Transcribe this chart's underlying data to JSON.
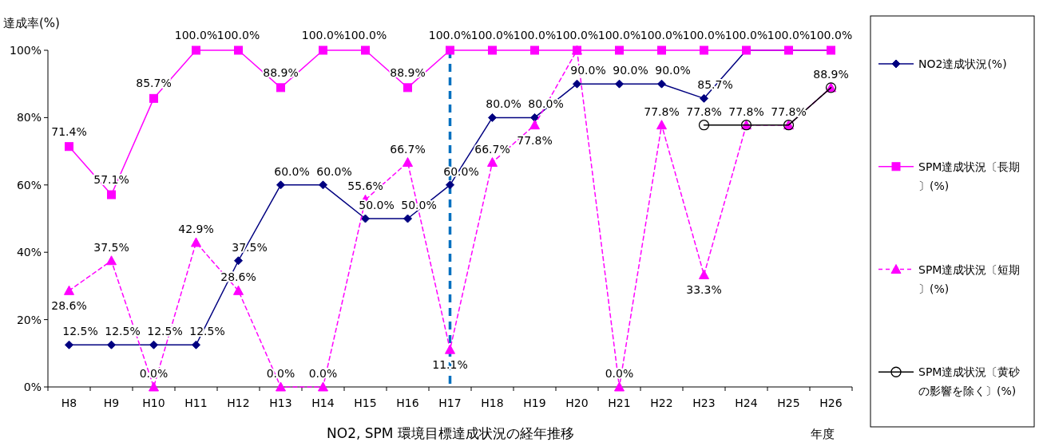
{
  "chart_data": {
    "type": "line",
    "title": "NO2, SPM 環境目標達成状況の経年推移",
    "xlabel": "年度",
    "ylabel": "達成率(%)",
    "categories": [
      "H8",
      "H9",
      "H10",
      "H11",
      "H12",
      "H13",
      "H14",
      "H15",
      "H16",
      "H17",
      "H18",
      "H19",
      "H20",
      "H21",
      "H22",
      "H23",
      "H24",
      "H25",
      "H26"
    ],
    "ylim": [
      0,
      100
    ],
    "yticks": [
      {
        "value": 0,
        "label": "0%"
      },
      {
        "value": 20,
        "label": "20%"
      },
      {
        "value": 40,
        "label": "40%"
      },
      {
        "value": 60,
        "label": "60%"
      },
      {
        "value": 80,
        "label": "80%"
      },
      {
        "value": 100,
        "label": "100%"
      }
    ],
    "grid": false,
    "legend": "right",
    "ref_lines": [
      {
        "axis": "x",
        "value": "H17",
        "color": "#0070c0",
        "line_style": "dashed"
      }
    ],
    "series": [
      {
        "name": "NO2達成状況(%)",
        "color": "#000080",
        "marker": "diamond",
        "line_style": "solid",
        "values": [
          12.5,
          12.5,
          12.5,
          12.5,
          37.5,
          60,
          60,
          50,
          50,
          60,
          80,
          80,
          90,
          90,
          90,
          85.7,
          100,
          100,
          100
        ],
        "value_labels": [
          "12.5%",
          "12.5%",
          "12.5%",
          "12.5%",
          "37.5%",
          "60.0%",
          "60.0%",
          "50.0%",
          "50.0%",
          "60.0%",
          "80.0%",
          "80.0%",
          "90.0%",
          "90.0%",
          "90.0%",
          "85.7%",
          null,
          null,
          null
        ]
      },
      {
        "name": "SPM達成状況〔長期〕(%)",
        "color": "#ff00ff",
        "marker": "square",
        "line_style": "solid",
        "values": [
          71.4,
          57.1,
          85.7,
          100,
          100,
          88.9,
          100,
          100,
          88.9,
          100,
          100,
          100,
          100,
          100,
          100,
          100,
          100,
          100,
          100
        ],
        "value_labels": [
          "71.4%",
          "57.1%",
          "85.7%",
          "100.0%",
          "100.0%",
          "88.9%",
          "100.0%",
          "100.0%",
          "88.9%",
          "100.0%",
          "100.0%",
          "100.0%",
          "100.0%",
          "100.0%",
          "100.0%",
          "100.0%",
          "100.0%",
          "100.0%",
          "100.0%"
        ]
      },
      {
        "name": "SPM達成状況〔短期〕(%)",
        "color": "#ff00ff",
        "marker": "triangle",
        "line_style": "dashed",
        "values": [
          28.6,
          37.5,
          0,
          42.9,
          28.6,
          0,
          0,
          55.6,
          66.7,
          11.1,
          66.7,
          77.8,
          100,
          0,
          77.8,
          33.3,
          77.8,
          77.8,
          88.9
        ],
        "value_labels": [
          "28.6%",
          "37.5%",
          "0.0%",
          "42.9%",
          "28.6%",
          "0.0%",
          "0.0%",
          "55.6%",
          "66.7%",
          "11.1%",
          "66.7%",
          "77.8%",
          null,
          "0.0%",
          "77.8%",
          "33.3%",
          null,
          null,
          null
        ]
      },
      {
        "name": "SPM達成状況〔黄砂の影響を除く〕(%)",
        "color": "#000000",
        "marker": "circle",
        "line_style": "solid",
        "values": [
          null,
          null,
          null,
          null,
          null,
          null,
          null,
          null,
          null,
          null,
          null,
          null,
          null,
          null,
          null,
          77.8,
          77.8,
          77.8,
          88.9
        ],
        "value_labels": [
          null,
          null,
          null,
          null,
          null,
          null,
          null,
          null,
          null,
          null,
          null,
          null,
          null,
          null,
          null,
          "77.8%",
          "77.8%",
          "77.8%",
          "88.9%"
        ]
      }
    ]
  }
}
